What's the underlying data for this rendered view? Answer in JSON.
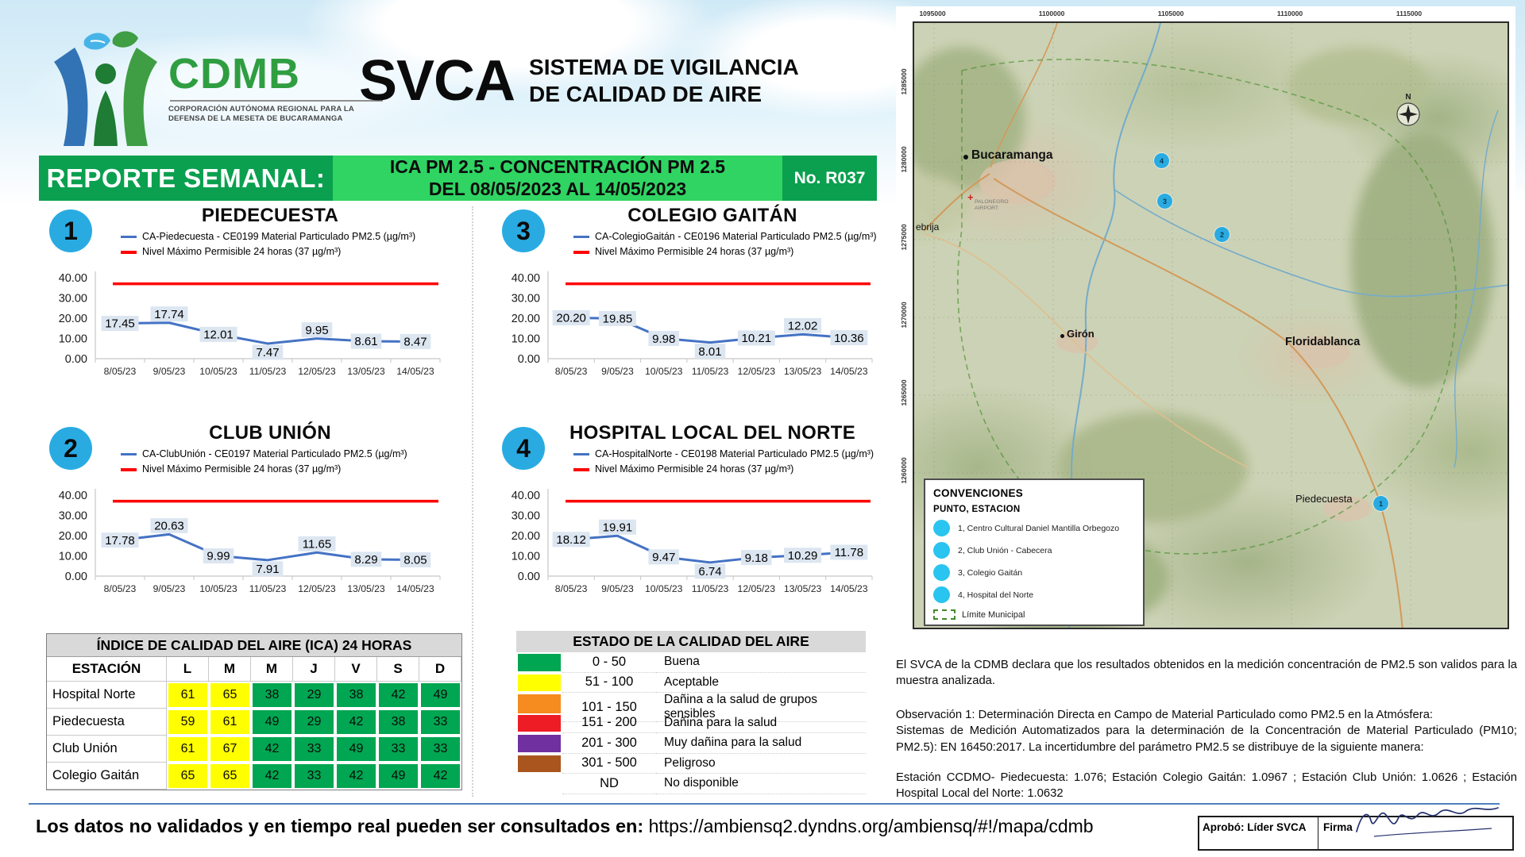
{
  "header": {
    "brand": "CDMB",
    "brand_sub1": "CORPORACIÓN AUTÓNOMA REGIONAL PARA LA",
    "brand_sub2": "DEFENSA DE LA MESETA DE BUCARAMANGA",
    "program": "SVCA",
    "program_line1": "SISTEMA DE VIGILANCIA",
    "program_line2": "DE CALIDAD DE AIRE"
  },
  "banner": {
    "left": "REPORTE SEMANAL:",
    "center_line1": "ICA PM 2.5 - CONCENTRACIÓN PM 2.5",
    "center_line2": "DEL 08/05/2023 AL 14/05/2023",
    "report_no": "No. R037",
    "dark_green": "#0aa04f",
    "light_green": "#2fd463"
  },
  "chart_data": [
    {
      "type": "line",
      "number": "1",
      "title": "PIEDECUESTA",
      "x": [
        "8/05/23",
        "9/05/23",
        "10/05/23",
        "11/05/23",
        "12/05/23",
        "13/05/23",
        "14/05/23"
      ],
      "series": [
        {
          "name": "CA-Piedecuesta - CE0199 Material Particulado PM2.5 (µg/m³)",
          "color": "#4472C4",
          "values": [
            17.45,
            17.74,
            12.01,
            7.47,
            9.95,
            8.61,
            8.47
          ]
        },
        {
          "name": "Nivel Máximo Permisible 24 horas (37 µg/m³)",
          "color": "#FF0000",
          "values": [
            37,
            37,
            37,
            37,
            37,
            37,
            37
          ]
        }
      ],
      "ylim": [
        0,
        40
      ],
      "yticks": [
        "40.00",
        "30.00",
        "20.00",
        "10.00",
        "0.00"
      ],
      "grid": false,
      "legend_position": "top"
    },
    {
      "type": "line",
      "number": "3",
      "title": "COLEGIO GAITÁN",
      "x": [
        "8/05/23",
        "9/05/23",
        "10/05/23",
        "11/05/23",
        "12/05/23",
        "13/05/23",
        "14/05/23"
      ],
      "series": [
        {
          "name": "CA-ColegioGaitán - CE0196 Material Particulado PM2.5 (µg/m³)",
          "color": "#4472C4",
          "values": [
            20.2,
            19.85,
            9.98,
            8.01,
            10.21,
            12.02,
            10.36
          ]
        },
        {
          "name": "Nivel Máximo Permisible 24 horas (37 µg/m³)",
          "color": "#FF0000",
          "values": [
            37,
            37,
            37,
            37,
            37,
            37,
            37
          ]
        }
      ],
      "ylim": [
        0,
        40
      ],
      "yticks": [
        "40.00",
        "30.00",
        "20.00",
        "10.00",
        "0.00"
      ],
      "grid": false,
      "legend_position": "top"
    },
    {
      "type": "line",
      "number": "2",
      "title": "CLUB UNIÓN",
      "x": [
        "8/05/23",
        "9/05/23",
        "10/05/23",
        "11/05/23",
        "12/05/23",
        "13/05/23",
        "14/05/23"
      ],
      "series": [
        {
          "name": "CA-ClubUnión - CE0197 Material Particulado PM2.5 (µg/m³)",
          "color": "#4472C4",
          "values": [
            17.78,
            20.63,
            9.99,
            7.91,
            11.65,
            8.29,
            8.05
          ]
        },
        {
          "name": "Nivel Máximo Permisible 24 horas (37 µg/m³)",
          "color": "#FF0000",
          "values": [
            37,
            37,
            37,
            37,
            37,
            37,
            37
          ]
        }
      ],
      "ylim": [
        0,
        40
      ],
      "yticks": [
        "40.00",
        "30.00",
        "20.00",
        "10.00",
        "0.00"
      ],
      "grid": false,
      "legend_position": "top"
    },
    {
      "type": "line",
      "number": "4",
      "title": "HOSPITAL LOCAL DEL NORTE",
      "x": [
        "8/05/23",
        "9/05/23",
        "10/05/23",
        "11/05/23",
        "12/05/23",
        "13/05/23",
        "14/05/23"
      ],
      "series": [
        {
          "name": "CA-HospitalNorte - CE0198 Material Particulado PM2.5 (µg/m³)",
          "color": "#4472C4",
          "values": [
            18.12,
            19.91,
            9.47,
            6.74,
            9.18,
            10.29,
            11.78
          ]
        },
        {
          "name": "Nivel Máximo Permisible 24 horas (37 µg/m³)",
          "color": "#FF0000",
          "values": [
            37,
            37,
            37,
            37,
            37,
            37,
            37
          ]
        }
      ],
      "ylim": [
        0,
        40
      ],
      "yticks": [
        "40.00",
        "30.00",
        "20.00",
        "10.00",
        "0.00"
      ],
      "grid": false,
      "legend_position": "top"
    }
  ],
  "ica_table": {
    "title": "ÍNDICE DE CALIDAD DEL AIRE (ICA) 24 HORAS",
    "columns": [
      "ESTACIÓN",
      "L",
      "M",
      "M",
      "J",
      "V",
      "S",
      "D"
    ],
    "rows": [
      {
        "station": "Hospital Norte",
        "values": [
          61,
          65,
          38,
          29,
          38,
          42,
          49
        ]
      },
      {
        "station": "Piedecuesta",
        "values": [
          59,
          61,
          49,
          29,
          42,
          38,
          33
        ]
      },
      {
        "station": "Club Unión",
        "values": [
          61,
          67,
          42,
          33,
          49,
          33,
          33
        ]
      },
      {
        "station": "Colegio Gaitán",
        "values": [
          65,
          65,
          42,
          33,
          42,
          49,
          42
        ]
      }
    ],
    "color_good": "#00A651",
    "color_acceptable": "#FFFF00"
  },
  "estado_table": {
    "title": "ESTADO DE LA CALIDAD DEL AIRE",
    "rows": [
      {
        "color": "#00A651",
        "range": "0 - 50",
        "label": "Buena"
      },
      {
        "color": "#FFFF00",
        "range": "51 - 100",
        "label": "Aceptable"
      },
      {
        "color": "#F68B1F",
        "range": "101 - 150",
        "label": "Dañina a la salud de grupos sensibles"
      },
      {
        "color": "#EE1C25",
        "range": "151 - 200",
        "label": "Dañina para la salud"
      },
      {
        "color": "#7030A0",
        "range": "201 - 300",
        "label": "Muy dañina para la salud"
      },
      {
        "color": "#A9551D",
        "range": "301 - 500",
        "label": "Peligroso"
      },
      {
        "color": null,
        "range": "ND",
        "label": "No disponible"
      }
    ]
  },
  "map": {
    "top_labels": [
      "1095000",
      "1100000",
      "1105000",
      "1110000",
      "1115000"
    ],
    "side_labels": [
      "1285000",
      "1280000",
      "1275000",
      "1270000",
      "1265000",
      "1260000"
    ],
    "places": {
      "city1": "Bucaramanga",
      "city2": "Girón",
      "city3": "Floridablanca",
      "city4": "Piedecuesta",
      "edge_town": "ebrija",
      "airport_line1": "PALONEGRO",
      "airport_line2": "AIRPORT",
      "north": "N"
    },
    "station_markers": [
      "4",
      "3",
      "2",
      "1"
    ],
    "legend": {
      "title": "CONVENCIONES",
      "subtitle": "PUNTO, ESTACION",
      "items": [
        "1, Centro Cultural Daniel Mantilla Orbegozo",
        "2, Club Unión - Cabecera",
        "3, Colegio Gaitán",
        "4, Hospital del Norte"
      ],
      "limit_label": "Límite Municipal",
      "marker_color": "#29c4f0"
    }
  },
  "notes": {
    "p1": "El SVCA  de la CDMB declara que los resultados obtenidos en la medición concentración de PM2.5 son validos para la muestra  analizada.",
    "p2a": "Observación 1: Determinación Directa en Campo de Material Particulado como PM2.5 en la Atmósfera:",
    "p2b": "Sistemas de Medición Automatizados para la  determinación de la Concentración de Material Particulado (PM10; PM2.5): EN 16450:2017. La incertidumbre del parámetro PM2.5 se distribuye de la siguiente manera:",
    "p3": "Estación CCDMO- Piedecuesta: 1.076; Estación Colegio Gaitán: 1.0967 ; Estación Club Unión: 1.0626 ; Estación Hospital Local del Norte: 1.0632"
  },
  "footer": {
    "consult_bold": "Los datos no validados y en tiempo real pueden ser consultados en:",
    "consult_url": "https://ambiensq2.dyndns.org/ambiensq/#!/mapa/cdmb",
    "approved": "Aprobó: Líder SVCA",
    "signature_label": "Firma"
  }
}
